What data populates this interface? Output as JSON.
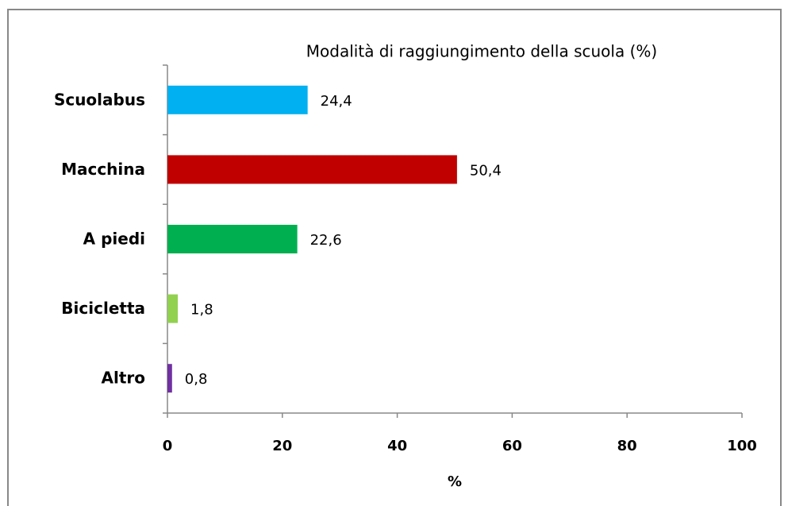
{
  "chart_data": {
    "type": "bar",
    "orientation": "horizontal",
    "title": "Modalità di raggiungimento della scuola (%)",
    "categories": [
      "Scuolabus",
      "Macchina",
      "A piedi",
      "Bicicletta",
      "Altro"
    ],
    "values": [
      24.4,
      50.4,
      22.6,
      1.8,
      0.8
    ],
    "value_labels": [
      "24,4",
      "50,4",
      "22,6",
      "1,8",
      "0,8"
    ],
    "colors": [
      "#00b0f0",
      "#c00000",
      "#00b050",
      "#92d050",
      "#7030a0"
    ],
    "xlabel": "%",
    "xlim": [
      0,
      100
    ],
    "xticks": [
      0,
      20,
      40,
      60,
      80,
      100
    ],
    "grid": false
  }
}
